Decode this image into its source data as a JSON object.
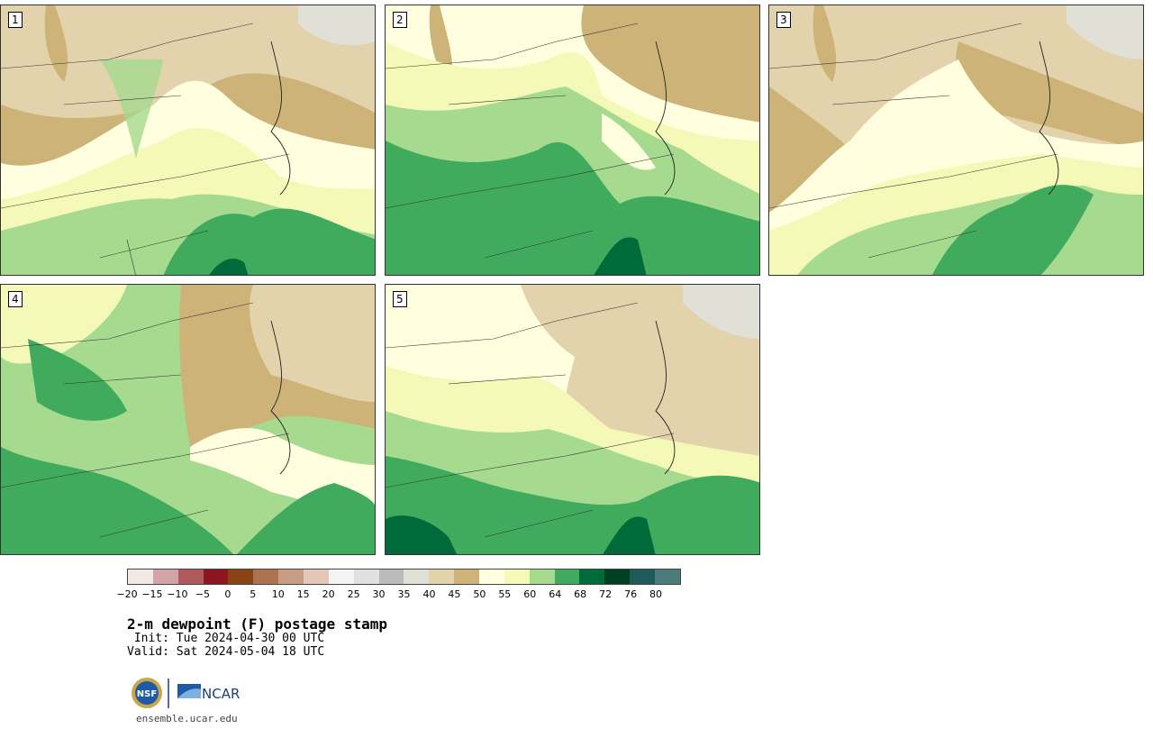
{
  "panels": [
    {
      "label": "1"
    },
    {
      "label": "2"
    },
    {
      "label": "3"
    },
    {
      "label": "4"
    },
    {
      "label": "5"
    }
  ],
  "legend": {
    "colors": [
      "#f3e8e8",
      "#d4a3a8",
      "#b05a60",
      "#8b1520",
      "#8c4314",
      "#ab7350",
      "#c99d82",
      "#e3c8b7",
      "#f3f3f3",
      "#e0e0e0",
      "#bbbbbb",
      "#e0e0d6",
      "#e2d3ad",
      "#cdb378",
      "#ffffe0",
      "#f5f9b7",
      "#a6da8e",
      "#41ab5d",
      "#006b3a",
      "#003f23",
      "#1f5a5a",
      "#4d7b7b"
    ],
    "tick_labels": [
      "−20",
      "−15",
      "−10",
      "−5",
      "0",
      "5",
      "10",
      "15",
      "20",
      "25",
      "30",
      "35",
      "40",
      "45",
      "50",
      "55",
      "60",
      "64",
      "68",
      "72",
      "76",
      "80"
    ]
  },
  "title": "2-m dewpoint (F) postage stamp",
  "init": " Init: Tue 2024-04-30 00 UTC",
  "valid": "Valid: Sat 2024-05-04 18 UTC",
  "logos": {
    "nsf": "NSF",
    "ncar": "NCAR"
  },
  "site": "ensemble.ucar.edu"
}
